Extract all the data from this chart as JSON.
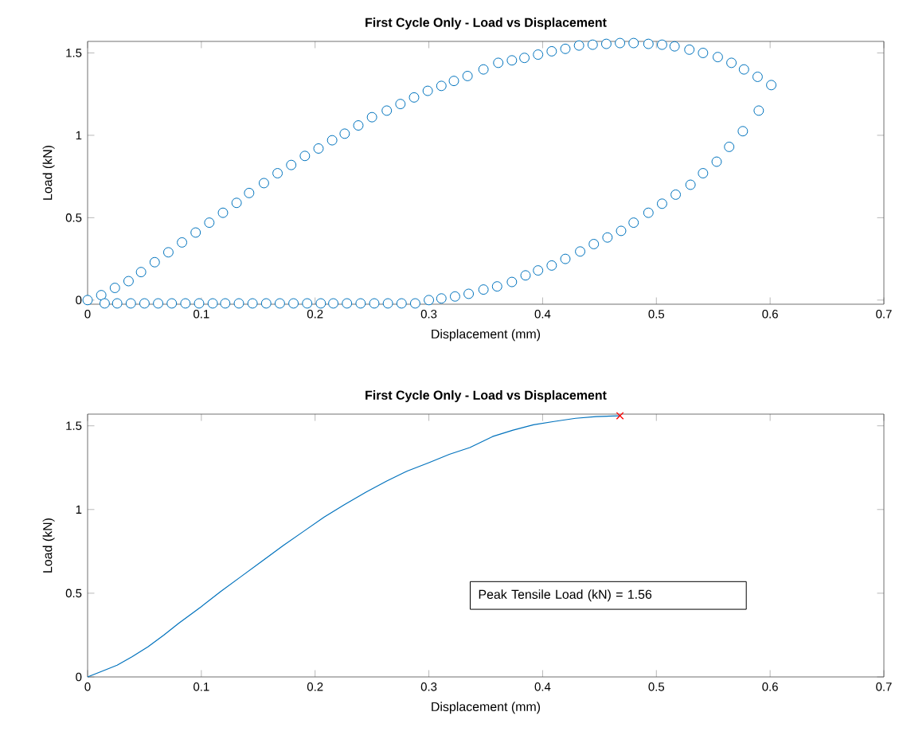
{
  "chart_data": [
    {
      "type": "scatter",
      "title": "First Cycle Only - Load vs Displacement",
      "xlabel": "Displacement (mm)",
      "ylabel": "Load (kN)",
      "xlim": [
        0,
        0.7
      ],
      "xticks": [
        0,
        0.1,
        0.2,
        0.3,
        0.4,
        0.5,
        0.6,
        0.7
      ],
      "ylim": [
        -0.025,
        1.57
      ],
      "yticks": [
        0,
        0.5,
        1,
        1.5
      ],
      "series": [
        {
          "color": "#0072bd",
          "marker": "circle",
          "x": [
            0,
            0.012,
            0.024,
            0.036,
            0.047,
            0.059,
            0.071,
            0.083,
            0.095,
            0.107,
            0.119,
            0.131,
            0.142,
            0.155,
            0.167,
            0.179,
            0.191,
            0.203,
            0.215,
            0.226,
            0.238,
            0.25,
            0.263,
            0.275,
            0.287,
            0.299,
            0.311,
            0.322,
            0.334,
            0.348,
            0.361,
            0.373,
            0.384,
            0.396,
            0.408,
            0.42,
            0.432,
            0.444,
            0.456,
            0.468,
            0.48,
            0.493,
            0.505,
            0.516,
            0.529,
            0.541,
            0.554,
            0.566,
            0.577,
            0.589,
            0.601,
            0.59,
            0.576,
            0.564,
            0.553,
            0.541,
            0.53,
            0.517,
            0.505,
            0.493,
            0.48,
            0.469,
            0.457,
            0.445,
            0.433,
            0.42,
            0.408,
            0.396,
            0.385,
            0.373,
            0.36,
            0.348,
            0.335,
            0.323,
            0.311,
            0.3,
            0.288,
            0.276,
            0.264,
            0.252,
            0.24,
            0.228,
            0.216,
            0.205,
            0.193,
            0.181,
            0.169,
            0.157,
            0.145,
            0.133,
            0.121,
            0.11,
            0.098,
            0.086,
            0.074,
            0.062,
            0.05,
            0.038,
            0.026,
            0.015
          ],
          "values": [
            0,
            0.03,
            0.074,
            0.115,
            0.17,
            0.23,
            0.29,
            0.35,
            0.41,
            0.47,
            0.53,
            0.59,
            0.65,
            0.71,
            0.77,
            0.82,
            0.875,
            0.92,
            0.97,
            1.01,
            1.06,
            1.11,
            1.15,
            1.19,
            1.23,
            1.27,
            1.3,
            1.33,
            1.36,
            1.4,
            1.44,
            1.455,
            1.47,
            1.49,
            1.51,
            1.525,
            1.545,
            1.55,
            1.555,
            1.56,
            1.56,
            1.555,
            1.55,
            1.54,
            1.52,
            1.5,
            1.475,
            1.44,
            1.4,
            1.355,
            1.305,
            1.15,
            1.025,
            0.93,
            0.84,
            0.77,
            0.7,
            0.64,
            0.585,
            0.53,
            0.47,
            0.42,
            0.38,
            0.34,
            0.295,
            0.25,
            0.21,
            0.18,
            0.15,
            0.11,
            0.083,
            0.064,
            0.038,
            0.022,
            0.01,
            0,
            -0.02,
            -0.02,
            -0.02,
            -0.02,
            -0.02,
            -0.02,
            -0.02,
            -0.02,
            -0.02,
            -0.02,
            -0.02,
            -0.02,
            -0.02,
            -0.02,
            -0.02,
            -0.02,
            -0.02,
            -0.02,
            -0.02,
            -0.02,
            -0.02,
            -0.02,
            -0.02,
            -0.02
          ]
        }
      ]
    },
    {
      "type": "line",
      "title": "First Cycle Only - Load vs Displacement",
      "xlabel": "Displacement (mm)",
      "ylabel": "Load (kN)",
      "xlim": [
        0,
        0.7
      ],
      "xticks": [
        0,
        0.1,
        0.2,
        0.3,
        0.4,
        0.5,
        0.6,
        0.7
      ],
      "ylim": [
        0,
        1.57
      ],
      "yticks": [
        0,
        0.5,
        1,
        1.5
      ],
      "annotations": [
        "Peak Tensile Load (kN) = 1.56"
      ],
      "series": [
        {
          "color": "#0072bd",
          "marker": "none",
          "x": [
            0,
            0.012,
            0.026,
            0.039,
            0.053,
            0.067,
            0.08,
            0.1,
            0.117,
            0.135,
            0.153,
            0.172,
            0.19,
            0.208,
            0.226,
            0.245,
            0.263,
            0.281,
            0.3,
            0.318,
            0.336,
            0.356,
            0.374,
            0.392,
            0.41,
            0.429,
            0.447,
            0.468
          ],
          "values": [
            0,
            0.032,
            0.07,
            0.12,
            0.18,
            0.25,
            0.32,
            0.42,
            0.51,
            0.6,
            0.69,
            0.785,
            0.87,
            0.955,
            1.03,
            1.105,
            1.17,
            1.23,
            1.28,
            1.33,
            1.37,
            1.436,
            1.474,
            1.506,
            1.526,
            1.545,
            1.555,
            1.56
          ]
        },
        {
          "type": "scatter",
          "color": "#ff0000",
          "marker": "cross",
          "x": [
            0.468
          ],
          "values": [
            1.56
          ]
        }
      ]
    }
  ]
}
